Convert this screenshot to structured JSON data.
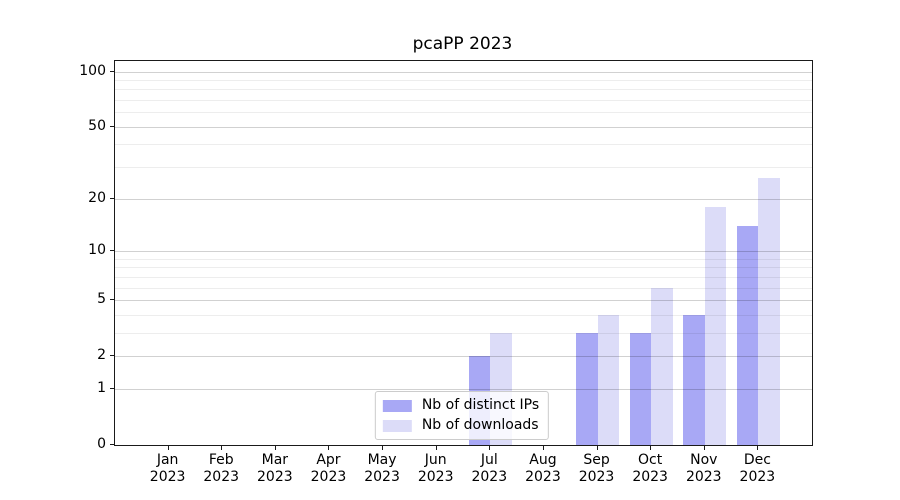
{
  "figure": {
    "background": "#ffffff"
  },
  "chart_data": {
    "type": "bar",
    "title": "pcaPP 2023",
    "categories": [
      {
        "month": "Jan",
        "year": "2023"
      },
      {
        "month": "Feb",
        "year": "2023"
      },
      {
        "month": "Mar",
        "year": "2023"
      },
      {
        "month": "Apr",
        "year": "2023"
      },
      {
        "month": "May",
        "year": "2023"
      },
      {
        "month": "Jun",
        "year": "2023"
      },
      {
        "month": "Jul",
        "year": "2023"
      },
      {
        "month": "Aug",
        "year": "2023"
      },
      {
        "month": "Sep",
        "year": "2023"
      },
      {
        "month": "Oct",
        "year": "2023"
      },
      {
        "month": "Nov",
        "year": "2023"
      },
      {
        "month": "Dec",
        "year": "2023"
      }
    ],
    "series": [
      {
        "name": "Nb of distinct IPs",
        "color": "#a8a8f5",
        "values": [
          0,
          0,
          0,
          0,
          0,
          0,
          2,
          0,
          3,
          3,
          4,
          14
        ]
      },
      {
        "name": "Nb of downloads",
        "color": "#dcdcf8",
        "values": [
          0,
          0,
          0,
          0,
          0,
          0,
          3,
          0,
          4,
          6,
          18,
          26
        ]
      }
    ],
    "yscale": "log1p",
    "ylim": [
      0,
      114
    ],
    "y_major_ticks": [
      0,
      1,
      2,
      5,
      10,
      20,
      50,
      100
    ],
    "y_minor_ticks": [
      3,
      4,
      6,
      7,
      8,
      9,
      30,
      40,
      60,
      70,
      80,
      90
    ],
    "grid": true,
    "legend_position": "lower center"
  }
}
